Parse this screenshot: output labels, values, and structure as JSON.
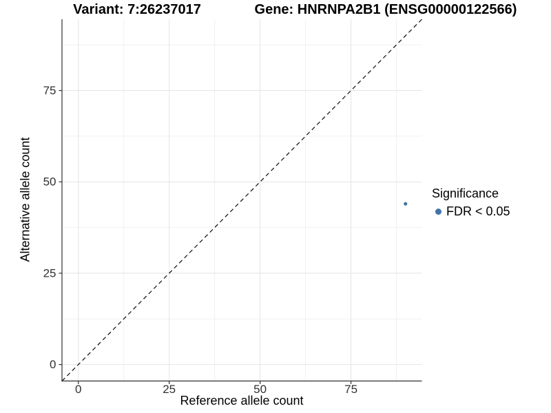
{
  "header": {
    "variant_title": "Variant: 7:26237017",
    "gene_title": "Gene: HNRNPA2B1 (ENSG00000122566)"
  },
  "legend": {
    "title": "Significance",
    "items": [
      {
        "label": "FDR < 0.05",
        "color": "#4173a6"
      }
    ]
  },
  "chart_data": {
    "type": "scatter",
    "title": "Variant: 7:26237017 | Gene: HNRNPA2B1 (ENSG00000122566)",
    "xlabel": "Reference allele count",
    "ylabel": "Alternative allele count",
    "xlim": [
      0,
      90
    ],
    "ylim": [
      0,
      90
    ],
    "x_ticks": [
      0,
      25,
      50,
      75
    ],
    "y_ticks": [
      0,
      25,
      50,
      75
    ],
    "x_minor_ticks": [
      12.5,
      37.5,
      62.5,
      87.5
    ],
    "y_minor_ticks": [
      12.5,
      37.5,
      62.5,
      87.5
    ],
    "grid": true,
    "legend_position": "right",
    "series": [
      {
        "name": "FDR < 0.05",
        "color": "#4173a6",
        "points": [
          {
            "x": 90,
            "y": 44
          }
        ]
      }
    ],
    "reference_line": {
      "type": "identity",
      "slope": 1,
      "intercept": 0,
      "style": "dashed",
      "color": "#1a1a1a"
    }
  },
  "colors": {
    "major_grid": "#e4e4e4",
    "minor_grid": "#f0f0f0",
    "axis_line": "#2f2f2f",
    "axis_text": "#303030"
  }
}
